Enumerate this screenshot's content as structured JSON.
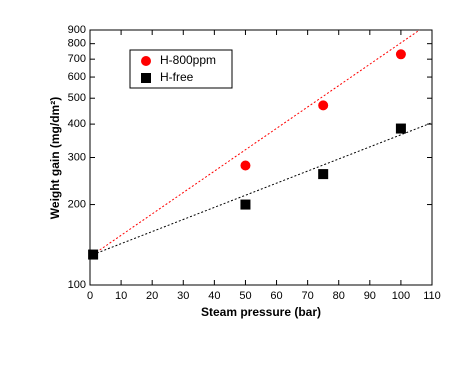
{
  "chart_data": {
    "type": "scatter",
    "xlabel": "Steam pressure (bar)",
    "ylabel": "Weight gain (mg/dm²)",
    "xlim": [
      0,
      110
    ],
    "xticks": [
      0,
      10,
      20,
      30,
      40,
      50,
      60,
      70,
      80,
      90,
      100,
      110
    ],
    "ylim": [
      100,
      900
    ],
    "yticks": [
      100,
      200,
      300,
      400,
      500,
      600,
      700,
      800,
      900
    ],
    "yscale": "log",
    "legend": "upper left",
    "series": [
      {
        "name": "H-800ppm",
        "color": "#ff0000",
        "marker": "circle",
        "x": [
          50,
          75,
          100
        ],
        "values": [
          280,
          470,
          730
        ]
      },
      {
        "name": "H-free",
        "color": "#000000",
        "marker": "square",
        "x": [
          1,
          50,
          75,
          100
        ],
        "values": [
          130,
          200,
          260,
          385
        ]
      }
    ],
    "fits": [
      {
        "color": "#ff0000",
        "x": [
          1,
          106
        ],
        "values": [
          130,
          900
        ]
      },
      {
        "color": "#000000",
        "x": [
          1,
          110
        ],
        "values": [
          130,
          405
        ]
      }
    ]
  }
}
